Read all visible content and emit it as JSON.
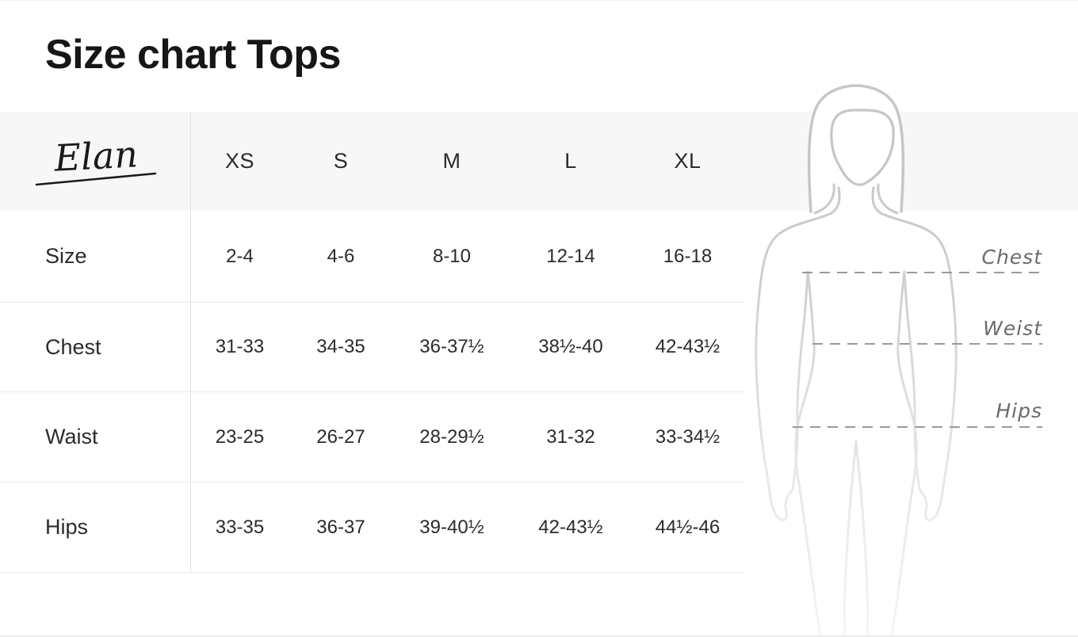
{
  "page": {
    "title": "Size chart Tops"
  },
  "brand": {
    "name": "Elan"
  },
  "chart_data": {
    "type": "table",
    "title": "Size chart Tops",
    "brand": "Elan",
    "columns": [
      "XS",
      "S",
      "M",
      "L",
      "XL"
    ],
    "rows": [
      {
        "label": "Size",
        "values": [
          "2-4",
          "4-6",
          "8-10",
          "12-14",
          "16-18"
        ]
      },
      {
        "label": "Chest",
        "values": [
          "31-33",
          "34-35",
          "36-37½",
          "38½-40",
          "42-43½"
        ]
      },
      {
        "label": "Waist",
        "values": [
          "23-25",
          "26-27",
          "28-29½",
          "31-32",
          "33-34½"
        ]
      },
      {
        "label": "Hips",
        "values": [
          "33-35",
          "36-37",
          "39-40½",
          "42-43½",
          "44½-46"
        ]
      }
    ],
    "figure_labels": [
      "Chest",
      "Weist",
      "Hips"
    ],
    "units": "inches (as shown)",
    "layout_hints": {
      "grid": "horizontal row dividers",
      "figure": "female-silhouette-right"
    }
  },
  "colors": {
    "header_band": "#f7f7f7",
    "grid_line": "#eaeaea",
    "title_text": "#161616",
    "cell_text": "#2b2b2b",
    "measure_label": "#6b6b6b",
    "dash_line": "#9a9a9a",
    "figure_outline": "#c6c6c6"
  }
}
